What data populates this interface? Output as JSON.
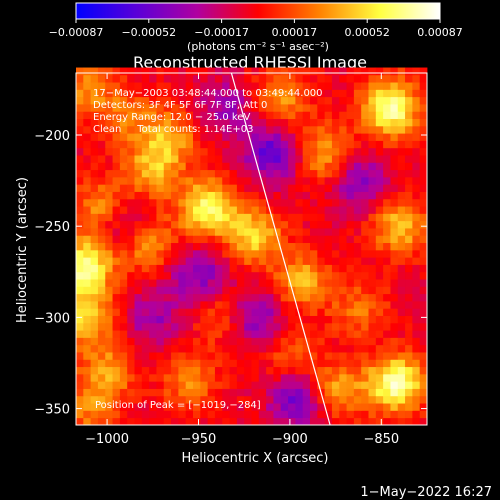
{
  "chart_data": {
    "type": "heatmap",
    "title": "Reconstructed RHESSI Image",
    "xlabel": "Heliocentric X (arcsec)",
    "ylabel": "Heliocentric Y (arcsec)",
    "xlim": [
      -1017,
      -825
    ],
    "ylim": [
      -359,
      -166
    ],
    "xticks": [
      -1000,
      -950,
      -900,
      -850
    ],
    "yticks": [
      -200,
      -250,
      -300,
      -350
    ],
    "xtick_labels": [
      "−1000",
      "−950",
      "−900",
      "−850"
    ],
    "ytick_labels": [
      "−200",
      "−250",
      "−300",
      "−350"
    ],
    "annotations": [
      "17−May−2003 03:48:44.000 to 03:49:44.000",
      "Detectors: 3F 4F 5F 6F 7F 8F, Att 0",
      "Energy Range: 12.0 − 25.0 keV",
      "Clean     Total counts: 1.14E+03"
    ],
    "peak_label": "Position of Peak = [−1019,−284]",
    "peak_position": [
      -1019,
      -284
    ],
    "limb_line": [
      [
        -932,
        -166
      ],
      [
        -878,
        -359
      ]
    ],
    "colorbar": {
      "range": [
        -0.00087,
        0.00087
      ],
      "tick_labels": [
        "−0.00087",
        "−0.00052",
        "−0.00017",
        "0.00017",
        "0.00052",
        "0.00087"
      ],
      "unit_text": "(photons cm⁻² s⁻¹ asec⁻²)",
      "stops": [
        "#0000ff",
        "#5a00d8",
        "#b000a0",
        "#ff0000",
        "#ff8000",
        "#ffff40",
        "#ffffff"
      ]
    },
    "intensity_grid_note_free": true,
    "hotspots": [
      {
        "x": -1012,
        "y": -174,
        "v": 0.00035
      },
      {
        "x": -990,
        "y": -190,
        "v": 0.0003
      },
      {
        "x": -965,
        "y": -200,
        "v": 0.0004
      },
      {
        "x": -975,
        "y": -218,
        "v": 0.00045
      },
      {
        "x": -1003,
        "y": -240,
        "v": 0.0004
      },
      {
        "x": -1012,
        "y": -272,
        "v": 0.00075
      },
      {
        "x": -1012,
        "y": -300,
        "v": 0.00055
      },
      {
        "x": -978,
        "y": -260,
        "v": 0.00045
      },
      {
        "x": -945,
        "y": -240,
        "v": 0.0007
      },
      {
        "x": -920,
        "y": -255,
        "v": 0.00055
      },
      {
        "x": -893,
        "y": -280,
        "v": 0.00045
      },
      {
        "x": -905,
        "y": -180,
        "v": 0.0004
      },
      {
        "x": -880,
        "y": -210,
        "v": 0.00045
      },
      {
        "x": -845,
        "y": -185,
        "v": 0.0008
      },
      {
        "x": -840,
        "y": -250,
        "v": 0.0005
      },
      {
        "x": -862,
        "y": -295,
        "v": 0.0003
      },
      {
        "x": -842,
        "y": -336,
        "v": 0.0008
      },
      {
        "x": -875,
        "y": -340,
        "v": 0.00045
      },
      {
        "x": -1000,
        "y": -330,
        "v": 0.0004
      },
      {
        "x": -1010,
        "y": -352,
        "v": 0.0003
      },
      {
        "x": -935,
        "y": -300,
        "v": 0.0003
      },
      {
        "x": -955,
        "y": -335,
        "v": 0.00035
      },
      {
        "x": -900,
        "y": -320,
        "v": 0.00025
      }
    ],
    "coldspots": [
      {
        "x": -910,
        "y": -210,
        "v": -0.0005
      },
      {
        "x": -920,
        "y": -300,
        "v": -0.00045
      },
      {
        "x": -895,
        "y": -345,
        "v": -0.0005
      },
      {
        "x": -990,
        "y": -250,
        "v": -0.00035
      },
      {
        "x": -950,
        "y": -275,
        "v": -0.0004
      },
      {
        "x": -862,
        "y": -225,
        "v": -0.0004
      },
      {
        "x": -935,
        "y": -185,
        "v": -0.0003
      },
      {
        "x": -975,
        "y": -300,
        "v": -0.0003
      }
    ]
  },
  "footer": {
    "timestamp": "1−May−2022 16:27"
  }
}
